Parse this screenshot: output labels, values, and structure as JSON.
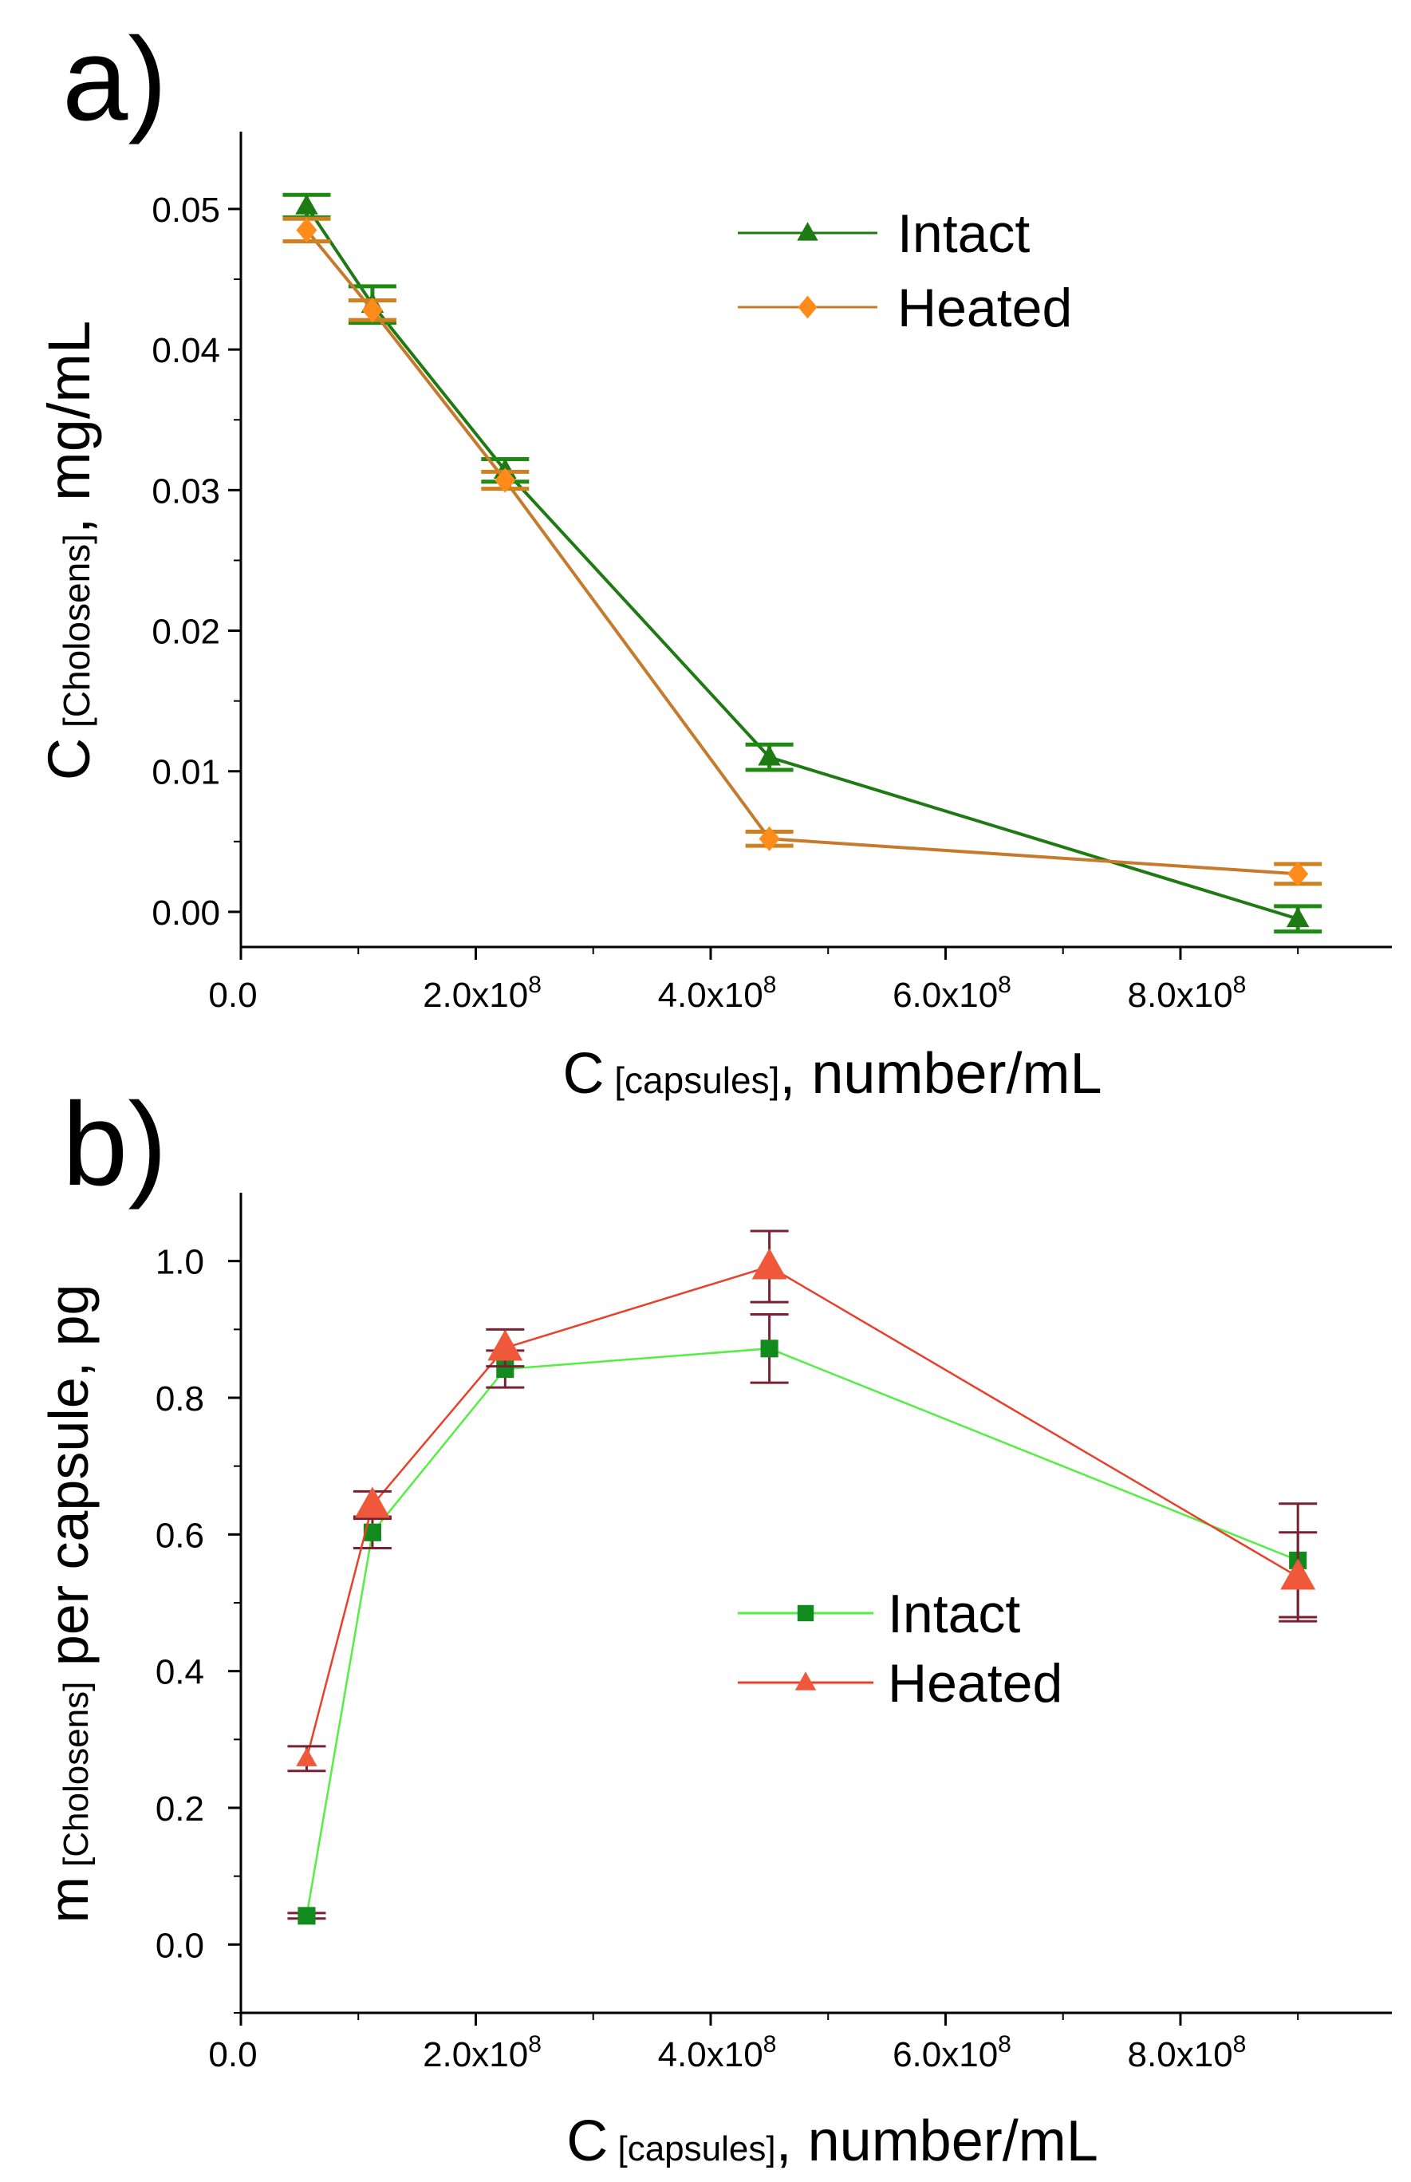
{
  "chart_data": [
    {
      "panel": "a)",
      "type": "line",
      "title": "",
      "xlabel": {
        "main": "C",
        "sub": "[capsules]",
        "rest": ", number/mL"
      },
      "ylabel": {
        "main": "C",
        "sub": "[Cholosens]",
        "rest": ", mg/mL"
      },
      "xlim": [
        0,
        980000000
      ],
      "ylim": [
        -0.0025,
        0.0555
      ],
      "x_ticks": [
        0,
        200000000,
        400000000,
        600000000,
        800000000
      ],
      "x_tick_labels": [
        {
          "mantissa": "0.0",
          "exp": ""
        },
        {
          "mantissa": "2.0x10",
          "exp": "8"
        },
        {
          "mantissa": "4.0x10",
          "exp": "8"
        },
        {
          "mantissa": "6.0x10",
          "exp": "8"
        },
        {
          "mantissa": "8.0x10",
          "exp": "8"
        }
      ],
      "y_ticks": [
        0.0,
        0.01,
        0.02,
        0.03,
        0.04,
        0.05
      ],
      "y_tick_labels": [
        "0.00",
        "0.01",
        "0.02",
        "0.03",
        "0.04",
        "0.05"
      ],
      "legend_position": "top-right",
      "series": [
        {
          "name": "Intact",
          "marker": "triangle",
          "color": "#1e7a12",
          "line_color": "#1e7a12",
          "err_color": "#1e8a12",
          "x": [
            56000000,
            112000000,
            225000000,
            450000000,
            900000000
          ],
          "y": [
            0.0502,
            0.0432,
            0.0314,
            0.011,
            -0.0005
          ],
          "err": [
            0.0008,
            0.0013,
            0.0008,
            0.0009,
            0.0009
          ]
        },
        {
          "name": "Heated",
          "marker": "diamond",
          "color": "#ff8c1a",
          "line_color": "#c67a2c",
          "err_color": "#cf8020",
          "x": [
            56000000,
            112000000,
            225000000,
            450000000,
            900000000
          ],
          "y": [
            0.0485,
            0.0428,
            0.0307,
            0.0052,
            0.0027
          ],
          "err": [
            0.0008,
            0.0007,
            0.0006,
            0.0005,
            0.0007
          ]
        }
      ]
    },
    {
      "panel": "b)",
      "type": "line",
      "title": "",
      "xlabel": {
        "main": "C",
        "sub": "[capsules]",
        "rest": ", number/mL"
      },
      "ylabel": {
        "main": "m",
        "sub": "[Cholosens]",
        "rest": " per capsule, pg"
      },
      "xlim": [
        0,
        980000000
      ],
      "ylim": [
        -0.1,
        1.1
      ],
      "x_ticks": [
        0,
        200000000,
        400000000,
        600000000,
        800000000
      ],
      "x_tick_labels": [
        {
          "mantissa": "0.0",
          "exp": ""
        },
        {
          "mantissa": "2.0x10",
          "exp": "8"
        },
        {
          "mantissa": "4.0x10",
          "exp": "8"
        },
        {
          "mantissa": "6.0x10",
          "exp": "8"
        },
        {
          "mantissa": "8.0x10",
          "exp": "8"
        }
      ],
      "y_ticks": [
        0.0,
        0.2,
        0.4,
        0.6,
        0.8,
        1.0
      ],
      "y_tick_labels": [
        "0.0",
        "0.2",
        "0.4",
        "0.6",
        "0.8",
        "1.0"
      ],
      "legend_position": "center-right",
      "series": [
        {
          "name": "Intact",
          "marker": "square",
          "color": "#118a1e",
          "line_color": "#55ee44",
          "err_color": "#7a2030",
          "x": [
            56000000,
            112000000,
            225000000,
            450000000,
            900000000
          ],
          "y": [
            0.042,
            0.603,
            0.842,
            0.872,
            0.562
          ],
          "err": [
            0.004,
            0.023,
            0.027,
            0.05,
            0.083
          ]
        },
        {
          "name": "Heated",
          "marker": "triangle",
          "color": "#f0583c",
          "line_color": "#e8402a",
          "err_color": "#7a2030",
          "x": [
            56000000,
            112000000,
            225000000,
            450000000,
            900000000
          ],
          "y": [
            0.272,
            0.643,
            0.873,
            0.992,
            0.538
          ],
          "err": [
            0.018,
            0.02,
            0.027,
            0.052,
            0.065
          ]
        }
      ]
    }
  ]
}
